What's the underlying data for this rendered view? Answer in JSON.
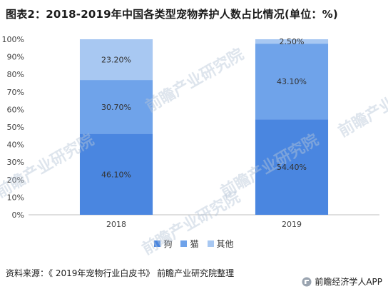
{
  "title": "图表2：2018-2019年中国各类型宠物养护人数占比情况(单位：%)",
  "source": "资料来源：《 2019年宠物行业白皮书》 前瞻产业研究院整理",
  "brand": "前瞻经济学人APP",
  "watermark": "前瞻产业研究院",
  "chart_data": {
    "type": "bar",
    "stacked": true,
    "categories": [
      "2018",
      "2019"
    ],
    "series": [
      {
        "name": "狗",
        "color": "#4a86e0",
        "values": [
          46.1,
          54.4
        ],
        "labels": [
          "46.10%",
          "54.40%"
        ]
      },
      {
        "name": "猫",
        "color": "#6fa3ea",
        "values": [
          30.7,
          43.1
        ],
        "labels": [
          "30.70%",
          "43.10%"
        ]
      },
      {
        "name": "其他",
        "color": "#a8c8f2",
        "values": [
          23.2,
          2.5
        ],
        "labels": [
          "23.20%",
          "2.50%"
        ]
      }
    ],
    "ylim": [
      0,
      100
    ],
    "yticks": [
      "0%",
      "10%",
      "20%",
      "30%",
      "40%",
      "50%",
      "60%",
      "70%",
      "80%",
      "90%",
      "100%"
    ],
    "grid": false,
    "legend": "bottom"
  }
}
